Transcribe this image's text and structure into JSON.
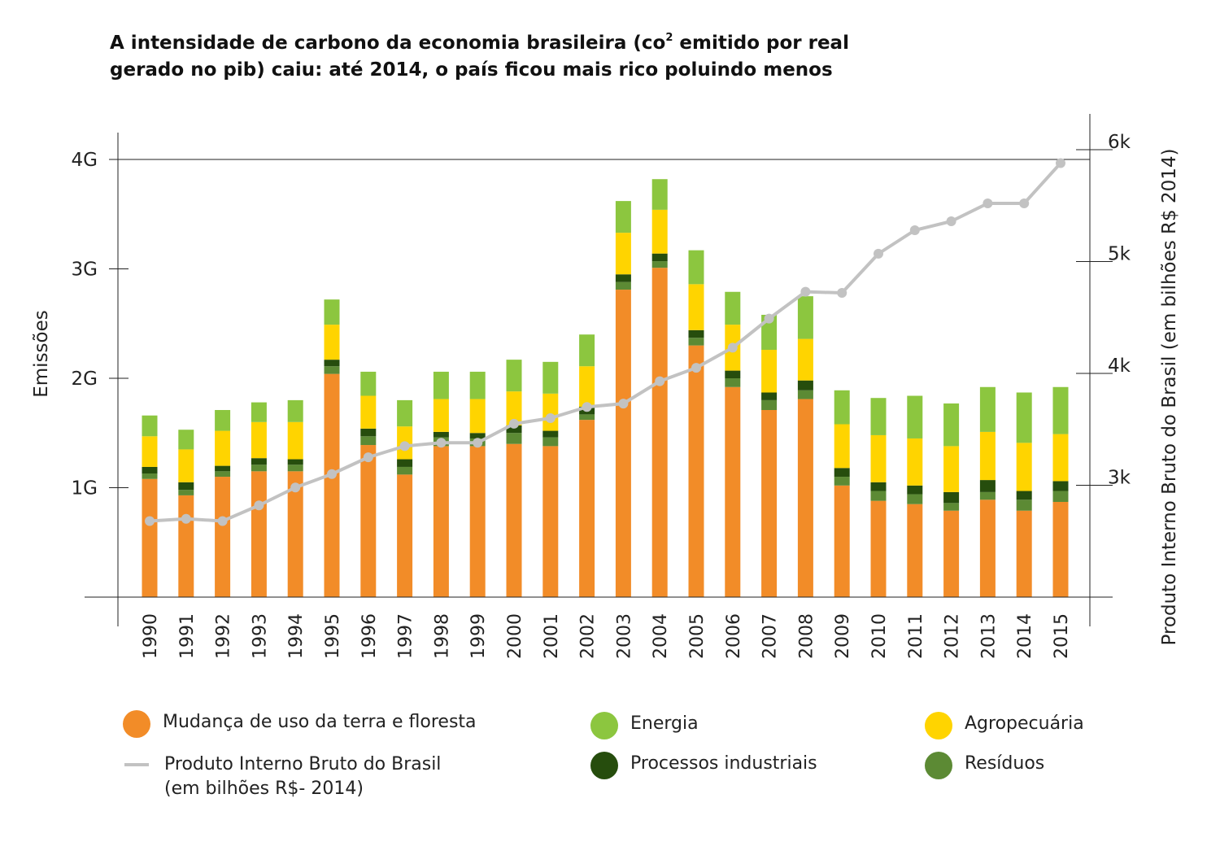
{
  "title": {
    "part1": "A intensidade de carbono da economia brasileira (co",
    "sup": "2",
    "part2": " emitido por real",
    "line2": "gerado no pib) caiu: até 2014, o país ficou mais rico poluindo menos"
  },
  "chart_data": {
    "type": "bar",
    "categories": [
      "1990",
      "1991",
      "1992",
      "1993",
      "1994",
      "1995",
      "1996",
      "1997",
      "1998",
      "1999",
      "2000",
      "2001",
      "2002",
      "2003",
      "2004",
      "2005",
      "2006",
      "2007",
      "2008",
      "2009",
      "2010",
      "2011",
      "2012",
      "2013",
      "2014",
      "2015"
    ],
    "ylabel": "Emissões",
    "y2label": "Produto Interno Bruto do Brasil (em bilhões R$ 2014)",
    "ylim": [
      0,
      4.3
    ],
    "y2lim": [
      2000,
      6100
    ],
    "yticks": [
      {
        "v": 1,
        "label": "1G"
      },
      {
        "v": 2,
        "label": "2G"
      },
      {
        "v": 3,
        "label": "3G"
      },
      {
        "v": 4,
        "label": "4G"
      }
    ],
    "y2ticks": [
      {
        "v": 3000,
        "label": "3k"
      },
      {
        "v": 4000,
        "label": "4k"
      },
      {
        "v": 5000,
        "label": "5k"
      },
      {
        "v": 6000,
        "label": "6k"
      }
    ],
    "series": [
      {
        "name": "Mudança de uso da terra e floresta",
        "color": "#f28c28",
        "values": [
          1.08,
          0.93,
          1.1,
          1.15,
          1.15,
          2.04,
          1.39,
          1.12,
          1.38,
          1.38,
          1.4,
          1.38,
          1.62,
          2.81,
          3.01,
          2.3,
          1.92,
          1.71,
          1.81,
          1.02,
          0.88,
          0.85,
          0.79,
          0.89,
          0.79,
          0.87
        ]
      },
      {
        "name": "Resíduos",
        "color": "#5c8a34",
        "values": [
          0.05,
          0.05,
          0.05,
          0.06,
          0.06,
          0.07,
          0.08,
          0.07,
          0.08,
          0.07,
          0.1,
          0.08,
          0.05,
          0.07,
          0.06,
          0.07,
          0.08,
          0.09,
          0.08,
          0.08,
          0.09,
          0.09,
          0.07,
          0.07,
          0.1,
          0.1
        ]
      },
      {
        "name": "Processos industriais",
        "color": "#264d0d",
        "values": [
          0.06,
          0.07,
          0.05,
          0.06,
          0.05,
          0.06,
          0.07,
          0.07,
          0.05,
          0.05,
          0.07,
          0.06,
          0.07,
          0.07,
          0.07,
          0.07,
          0.07,
          0.07,
          0.09,
          0.08,
          0.08,
          0.08,
          0.1,
          0.11,
          0.08,
          0.09
        ]
      },
      {
        "name": "Agropecuária",
        "color": "#ffd400",
        "values": [
          0.28,
          0.3,
          0.32,
          0.33,
          0.34,
          0.32,
          0.3,
          0.3,
          0.3,
          0.31,
          0.31,
          0.34,
          0.37,
          0.38,
          0.4,
          0.42,
          0.42,
          0.39,
          0.38,
          0.4,
          0.43,
          0.43,
          0.42,
          0.44,
          0.44,
          0.43
        ]
      },
      {
        "name": "Energia",
        "color": "#8cc63f",
        "values": [
          0.19,
          0.18,
          0.19,
          0.18,
          0.2,
          0.23,
          0.22,
          0.24,
          0.25,
          0.25,
          0.29,
          0.29,
          0.29,
          0.29,
          0.28,
          0.31,
          0.3,
          0.32,
          0.39,
          0.31,
          0.34,
          0.39,
          0.39,
          0.41,
          0.46,
          0.43
        ]
      },
      {
        "name": "Produto Interno Bruto do Brasil (em bilhões R$- 2014)",
        "color": "#c2c2c2",
        "axis": "right",
        "type": "line",
        "values": [
          2680,
          2700,
          2680,
          2820,
          2980,
          3100,
          3250,
          3350,
          3380,
          3380,
          3550,
          3600,
          3700,
          3730,
          3930,
          4050,
          4230,
          4490,
          4730,
          4720,
          5070,
          5280,
          5360,
          5520,
          5520,
          5880
        ]
      }
    ]
  },
  "legend": [
    {
      "name": "Mudança de uso da terra e floresta",
      "color": "#f28c28",
      "shape": "circle"
    },
    {
      "name": "Energia",
      "color": "#8cc63f",
      "shape": "circle"
    },
    {
      "name": "Agropecuária",
      "color": "#ffd400",
      "shape": "circle"
    },
    {
      "name": "Produto Interno Bruto do Brasil",
      "name_line2": "(em bilhões R$- 2014)",
      "color": "#c2c2c2",
      "shape": "line"
    },
    {
      "name": "Processos industriais",
      "color": "#264d0d",
      "shape": "circle"
    },
    {
      "name": "Resíduos",
      "color": "#5c8a34",
      "shape": "circle"
    }
  ]
}
